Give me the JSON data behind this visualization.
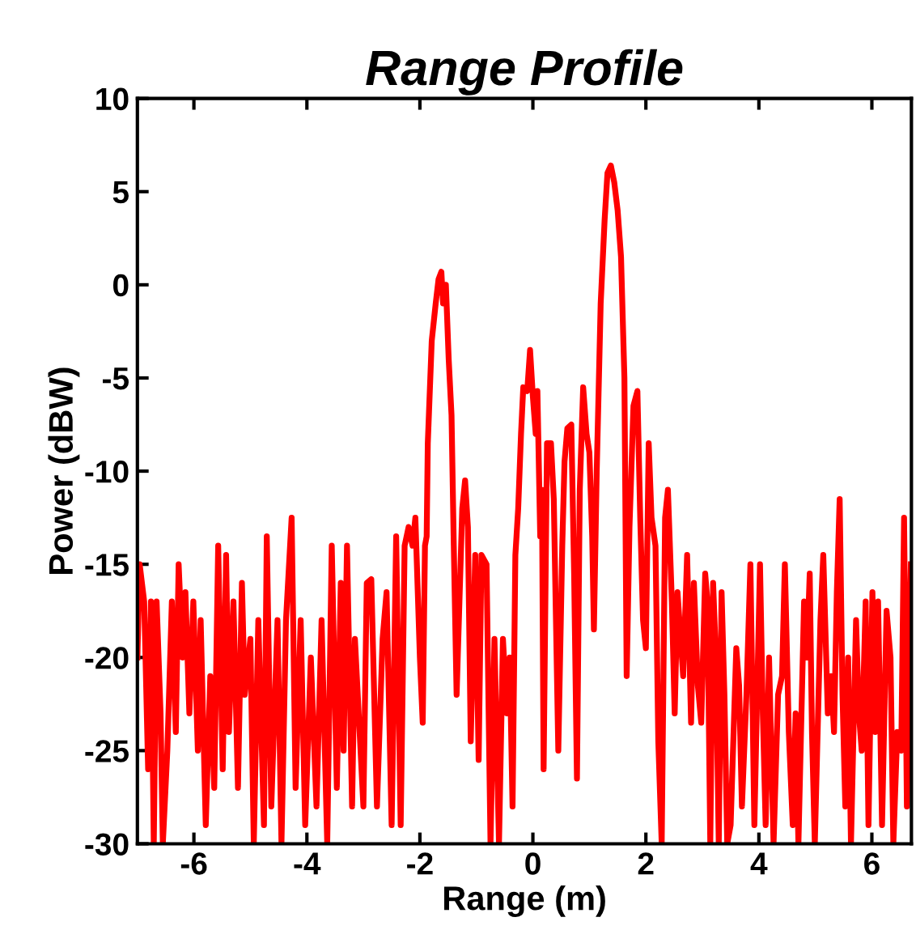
{
  "chart_data": {
    "type": "line",
    "title": "Range Profile",
    "xlabel": "Range (m)",
    "ylabel": "Power (dBW)",
    "xlim": [
      -7,
      6.7
    ],
    "ylim": [
      -30,
      10
    ],
    "xticks": [
      -6,
      -4,
      -2,
      0,
      2,
      4,
      6
    ],
    "yticks": [
      -30,
      -25,
      -20,
      -15,
      -10,
      -5,
      0,
      5,
      10
    ],
    "grid": false,
    "legend": false,
    "marker": "none",
    "line_style": "solid",
    "series": [
      {
        "color": "#ff0000",
        "x": [
          -7.0,
          -6.96,
          -6.88,
          -6.81,
          -6.76,
          -6.71,
          -6.66,
          -6.59,
          -6.55,
          -6.47,
          -6.39,
          -6.32,
          -6.27,
          -6.2,
          -6.15,
          -6.08,
          -6.01,
          -5.93,
          -5.88,
          -5.79,
          -5.71,
          -5.64,
          -5.57,
          -5.49,
          -5.43,
          -5.38,
          -5.3,
          -5.22,
          -5.15,
          -5.1,
          -5.0,
          -4.94,
          -4.86,
          -4.76,
          -4.71,
          -4.63,
          -4.52,
          -4.45,
          -4.37,
          -4.27,
          -4.2,
          -4.11,
          -4.03,
          -3.93,
          -3.83,
          -3.74,
          -3.64,
          -3.56,
          -3.47,
          -3.4,
          -3.35,
          -3.29,
          -3.2,
          -3.15,
          -3.0,
          -2.94,
          -2.86,
          -2.76,
          -2.66,
          -2.59,
          -2.5,
          -2.42,
          -2.34,
          -2.27,
          -2.2,
          -2.13,
          -2.08,
          -2.0,
          -1.95,
          -1.91,
          -1.88,
          -1.86,
          -1.79,
          -1.72,
          -1.67,
          -1.62,
          -1.59,
          -1.54,
          -1.49,
          -1.44,
          -1.4,
          -1.35,
          -1.3,
          -1.25,
          -1.2,
          -1.15,
          -1.1,
          -1.02,
          -0.96,
          -0.91,
          -0.82,
          -0.75,
          -0.68,
          -0.6,
          -0.53,
          -0.46,
          -0.41,
          -0.36,
          -0.31,
          -0.26,
          -0.21,
          -0.17,
          -0.1,
          -0.05,
          0,
          0.05,
          0.08,
          0.13,
          0.16,
          0.19,
          0.25,
          0.32,
          0.37,
          0.45,
          0.52,
          0.56,
          0.61,
          0.68,
          0.73,
          0.78,
          0.83,
          0.89,
          0.95,
          1.0,
          1.05,
          1.08,
          1.13,
          1.2,
          1.27,
          1.32,
          1.38,
          1.44,
          1.5,
          1.56,
          1.62,
          1.66,
          1.71,
          1.78,
          1.85,
          1.9,
          1.95,
          2.0,
          2.05,
          2.1,
          2.17,
          2.22,
          2.28,
          2.34,
          2.39,
          2.46,
          2.51,
          2.56,
          2.66,
          2.73,
          2.8,
          2.85,
          2.92,
          2.98,
          3.05,
          3.09,
          3.14,
          3.19,
          3.24,
          3.29,
          3.34,
          3.39,
          3.44,
          3.5,
          3.6,
          3.65,
          3.7,
          3.78,
          3.85,
          3.92,
          4.02,
          4.07,
          4.12,
          4.18,
          4.26,
          4.34,
          4.41,
          4.46,
          4.53,
          4.6,
          4.65,
          4.7,
          4.8,
          4.85,
          4.9,
          4.94,
          4.99,
          5.09,
          5.14,
          5.22,
          5.28,
          5.33,
          5.38,
          5.43,
          5.48,
          5.53,
          5.58,
          5.63,
          5.72,
          5.77,
          5.82,
          5.89,
          5.94,
          6.01,
          6.06,
          6.11,
          6.18,
          6.26,
          6.33,
          6.38,
          6.45,
          6.52,
          6.57,
          6.62,
          6.69
        ],
        "values": [
          -20,
          -15,
          -17,
          -26,
          -17,
          -30,
          -17,
          -23,
          -30,
          -25,
          -17,
          -24,
          -15,
          -20,
          -16.5,
          -23,
          -17,
          -25,
          -18,
          -29,
          -21,
          -27,
          -14,
          -26,
          -14.5,
          -24,
          -17,
          -27,
          -16,
          -22,
          -19,
          -30,
          -18,
          -29,
          -13.5,
          -28,
          -18,
          -30,
          -18,
          -12.5,
          -27,
          -18,
          -29,
          -20,
          -28,
          -18,
          -30,
          -14,
          -27,
          -16,
          -25,
          -14,
          -28,
          -19,
          -28,
          -16,
          -15.8,
          -28,
          -19,
          -16.5,
          -29,
          -13.5,
          -29,
          -14,
          -13,
          -14,
          -12.5,
          -20,
          -23.5,
          -14,
          -13.5,
          -8.5,
          -3,
          -1,
          0.3,
          0.7,
          -1,
          0,
          -4,
          -7,
          -14,
          -22,
          -17,
          -12,
          -10.5,
          -13,
          -24.5,
          -14.5,
          -25.5,
          -14.5,
          -15,
          -30,
          -19,
          -30,
          -19,
          -23,
          -20,
          -28,
          -14.5,
          -12,
          -8,
          -5.5,
          -5.7,
          -3.5,
          -6,
          -8,
          -5.7,
          -13.5,
          -11,
          -26,
          -8.5,
          -8.5,
          -11.5,
          -25,
          -14,
          -9.5,
          -7.7,
          -7.5,
          -15.5,
          -26.5,
          -11,
          -5.5,
          -8,
          -9,
          -13.5,
          -18.5,
          -10,
          -1,
          3.5,
          6,
          6.4,
          5.5,
          4,
          1.5,
          -5,
          -21,
          -13,
          -6.5,
          -5.7,
          -12.5,
          -18,
          -19.5,
          -8.5,
          -12.5,
          -14,
          -24.5,
          -30,
          -12.5,
          -11,
          -17,
          -23,
          -16.5,
          -21,
          -14.5,
          -23.5,
          -16,
          -21.5,
          -23.5,
          -15.5,
          -17,
          -30,
          -16,
          -20,
          -30,
          -16.5,
          -22,
          -30,
          -29,
          -19.5,
          -21.5,
          -28,
          -22,
          -15,
          -29,
          -15,
          -23,
          -29,
          -20,
          -30,
          -22,
          -21,
          -15,
          -24,
          -29,
          -23,
          -30,
          -17,
          -20,
          -15.5,
          -24,
          -30,
          -18,
          -14.5,
          -23,
          -21,
          -24,
          -16.5,
          -11.5,
          -22,
          -28,
          -20,
          -30,
          -18,
          -23,
          -25,
          -17,
          -29,
          -16.5,
          -24,
          -17,
          -29,
          -17.5,
          -20,
          -30,
          -24,
          -25,
          -12.5,
          -28,
          -15
        ]
      }
    ]
  }
}
